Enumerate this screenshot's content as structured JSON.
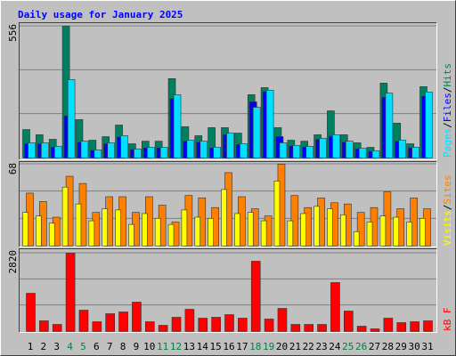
{
  "chart_data": [
    {
      "type": "bar",
      "title": "Daily usage for January 2025",
      "categories": [
        "1",
        "2",
        "3",
        "4",
        "5",
        "6",
        "7",
        "8",
        "9",
        "10",
        "11",
        "12",
        "13",
        "14",
        "15",
        "16",
        "17",
        "18",
        "19",
        "20",
        "21",
        "22",
        "23",
        "24",
        "25",
        "26",
        "27",
        "28",
        "29",
        "30",
        "31"
      ],
      "category_colors": [
        "#000000",
        "#000000",
        "#000000",
        "#008040",
        "#008040",
        "#000000",
        "#000000",
        "#000000",
        "#000000",
        "#000000",
        "#008040",
        "#008040",
        "#000000",
        "#000000",
        "#000000",
        "#000000",
        "#000000",
        "#008040",
        "#008040",
        "#000000",
        "#000000",
        "#000000",
        "#000000",
        "#000000",
        "#008040",
        "#008040",
        "#000000",
        "#000000",
        "#000000",
        "#000000",
        "#000000"
      ],
      "ylim": [
        0,
        556
      ],
      "yticks": [
        556
      ],
      "separator": "/",
      "series": [
        {
          "name": "Hits",
          "color": "#008060",
          "values": [
            120,
            98,
            79,
            556,
            162,
            75,
            90,
            139,
            60,
            71,
            71,
            335,
            132,
            94,
            128,
            128,
            105,
            267,
            297,
            128,
            75,
            71,
            98,
            199,
            98,
            64,
            45,
            316,
            147,
            60,
            301
          ]
        },
        {
          "name": "Files",
          "color": "#0000ff",
          "values": [
            60,
            60,
            45,
            177,
            66,
            32,
            60,
            88,
            35,
            42,
            42,
            250,
            70,
            66,
            42,
            98,
            56,
            237,
            280,
            90,
            50,
            46,
            78,
            92,
            66,
            38,
            28,
            256,
            70,
            42,
            260
          ]
        },
        {
          "name": "Pages",
          "color": "#00e0ff",
          "values": [
            64,
            64,
            49,
            331,
            71,
            34,
            64,
            94,
            38,
            45,
            45,
            267,
            75,
            71,
            45,
            105,
            60,
            214,
            286,
            64,
            53,
            49,
            83,
            98,
            71,
            41,
            30,
            274,
            75,
            45,
            278
          ]
        }
      ]
    },
    {
      "type": "bar",
      "ylim": [
        0,
        68
      ],
      "yticks": [
        68
      ],
      "separator": "/",
      "series": [
        {
          "name": "Sites",
          "color": "#ff8000",
          "values": [
            44,
            37,
            24,
            58,
            52,
            28,
            41,
            41,
            28,
            41,
            34,
            20,
            42,
            40,
            32,
            61,
            41,
            31,
            25,
            68,
            42,
            32,
            40,
            36,
            35,
            28,
            32,
            45,
            31,
            40,
            31
          ]
        },
        {
          "name": "Visits",
          "color": "#ffff00",
          "values": [
            28,
            25,
            19,
            49,
            35,
            21,
            31,
            30,
            18,
            27,
            23,
            18,
            30,
            24,
            23,
            47,
            27,
            28,
            21,
            54,
            21,
            27,
            33,
            31,
            26,
            12,
            20,
            25,
            24,
            20,
            23
          ]
        }
      ]
    },
    {
      "type": "bar",
      "ylim": [
        0,
        2820
      ],
      "yticks": [
        2820
      ],
      "series": [
        {
          "name": "kB F",
          "color": "#ff0000",
          "values": [
            1378,
            385,
            256,
            2820,
            769,
            353,
            641,
            705,
            1058,
            353,
            224,
            513,
            801,
            481,
            513,
            609,
            481,
            2532,
            449,
            833,
            256,
            256,
            256,
            1763,
            737,
            192,
            96,
            481,
            321,
            353,
            385
          ]
        }
      ]
    }
  ]
}
